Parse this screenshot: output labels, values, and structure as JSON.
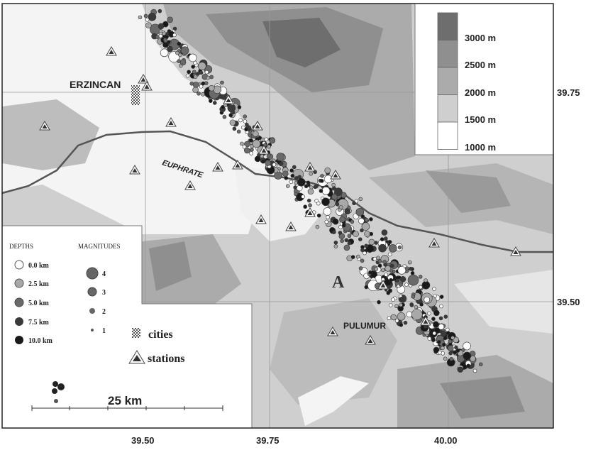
{
  "map": {
    "places": {
      "erzincan": "ERZINCAN",
      "euphrate": "EUPHRATE",
      "pulumur": "PULUMUR",
      "region_label": "A"
    },
    "x_ticks": [
      "39.50",
      "39.75",
      "40.00"
    ],
    "y_ticks": [
      "39.75",
      "39.50"
    ]
  },
  "elevation_legend": {
    "levels": [
      {
        "label": "3000 m",
        "color": "#6e6e6e"
      },
      {
        "label": "2500 m",
        "color": "#8f8f8f"
      },
      {
        "label": "2000 m",
        "color": "#ababab"
      },
      {
        "label": "1500 m",
        "color": "#cfcfcf"
      },
      {
        "label": "1000 m",
        "color": "#ffffff"
      }
    ]
  },
  "depth_legend": {
    "title": "DEPTHS",
    "items": [
      {
        "label": "0.0 km",
        "color": "#ffffff"
      },
      {
        "label": "2.5 km",
        "color": "#a8a8a8"
      },
      {
        "label": "5.0 km",
        "color": "#6a6a6a"
      },
      {
        "label": "7.5 km",
        "color": "#3a3a3a"
      },
      {
        "label": "10.0 km",
        "color": "#1a1a1a"
      }
    ]
  },
  "magnitude_legend": {
    "title": "MAGNITUDES",
    "items": [
      {
        "label": "4"
      },
      {
        "label": "3"
      },
      {
        "label": "2"
      },
      {
        "label": "1"
      }
    ]
  },
  "symbol_legend": {
    "cities": "cities",
    "stations": "stations"
  },
  "scale_bar": {
    "label": "25 km"
  }
}
